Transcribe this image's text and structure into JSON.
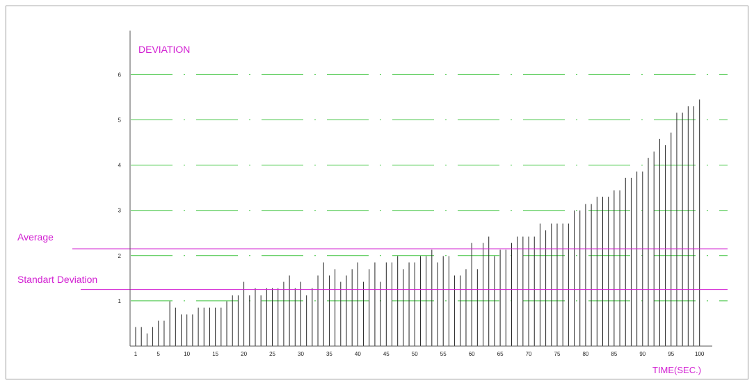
{
  "chart_data": {
    "type": "bar",
    "title": "",
    "ylabel": "DEVIATION",
    "xlabel": "TIME(SEC.)",
    "x": [
      1,
      2,
      3,
      4,
      5,
      6,
      7,
      8,
      9,
      10,
      11,
      12,
      13,
      14,
      15,
      16,
      17,
      18,
      19,
      20,
      21,
      22,
      23,
      24,
      25,
      26,
      27,
      28,
      29,
      30,
      31,
      32,
      33,
      34,
      35,
      36,
      37,
      38,
      39,
      40,
      41,
      42,
      43,
      44,
      45,
      46,
      47,
      48,
      49,
      50,
      51,
      52,
      53,
      54,
      55,
      56,
      57,
      58,
      59,
      60,
      61,
      62,
      63,
      64,
      65,
      66,
      67,
      68,
      69,
      70,
      71,
      72,
      73,
      74,
      75,
      76,
      77,
      78,
      79,
      80,
      81,
      82,
      83,
      84,
      85,
      86,
      87,
      88,
      89,
      90,
      91,
      92,
      93,
      94,
      95,
      96,
      97,
      98,
      99,
      100
    ],
    "values": [
      0.42,
      0.42,
      0.28,
      0.42,
      0.56,
      0.56,
      0.99,
      0.85,
      0.7,
      0.7,
      0.7,
      0.85,
      0.85,
      0.85,
      0.85,
      0.85,
      0.99,
      1.12,
      1.12,
      1.42,
      1.12,
      1.28,
      1.12,
      1.28,
      1.28,
      1.28,
      1.42,
      1.56,
      1.28,
      1.42,
      1.12,
      1.28,
      1.56,
      1.85,
      1.56,
      1.7,
      1.42,
      1.56,
      1.7,
      1.85,
      1.42,
      1.7,
      1.85,
      1.42,
      1.85,
      1.85,
      1.99,
      1.7,
      1.85,
      1.85,
      1.99,
      1.99,
      2.13,
      1.85,
      1.99,
      1.99,
      1.56,
      1.56,
      1.7,
      2.28,
      1.7,
      2.28,
      2.42,
      1.99,
      2.13,
      2.13,
      2.28,
      2.42,
      2.42,
      2.42,
      2.42,
      2.71,
      2.56,
      2.71,
      2.71,
      2.71,
      2.71,
      3.0,
      3.0,
      3.14,
      3.14,
      3.3,
      3.3,
      3.3,
      3.44,
      3.44,
      3.72,
      3.72,
      3.86,
      3.86,
      4.16,
      4.3,
      4.58,
      4.44,
      4.72,
      5.16,
      5.16,
      5.3,
      5.3,
      5.45
    ],
    "x_ticks": [
      "1",
      "5",
      "10",
      "15",
      "20",
      "25",
      "30",
      "35",
      "40",
      "45",
      "50",
      "55",
      "60",
      "65",
      "70",
      "75",
      "80",
      "85",
      "90",
      "95",
      "100"
    ],
    "y_ticks": [
      "1",
      "2",
      "3",
      "4",
      "5",
      "6"
    ],
    "xlim": [
      0,
      102
    ],
    "ylim": [
      0,
      6.6
    ],
    "grid": "horizontal dashed",
    "reference_lines": [
      {
        "label": "Average",
        "value": 2.15,
        "color": "#d21fd2"
      },
      {
        "label": "Standart Deviation",
        "value": 1.25,
        "color": "#d21fd2"
      }
    ],
    "colors": {
      "bars": "#222222",
      "grid": "#3cc23c",
      "reference": "#d21fd2",
      "axes": "#555555"
    }
  }
}
